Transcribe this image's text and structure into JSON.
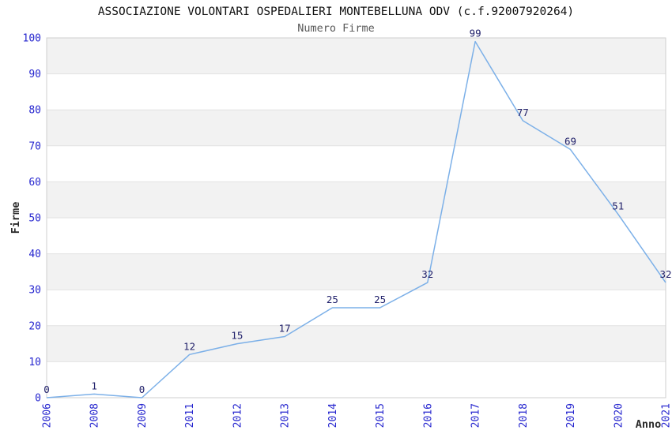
{
  "chart_data": {
    "type": "line",
    "title": "ASSOCIAZIONE VOLONTARI OSPEDALIERI MONTEBELLUNA ODV (c.f.92007920264)",
    "subtitle": "Numero Firme",
    "xlabel": "Anno",
    "ylabel": "Firme",
    "categories": [
      "2006",
      "2008",
      "2009",
      "2011",
      "2012",
      "2013",
      "2014",
      "2015",
      "2016",
      "2017",
      "2018",
      "2019",
      "2020",
      "2021"
    ],
    "values": [
      0,
      1,
      0,
      12,
      15,
      17,
      25,
      25,
      32,
      99,
      77,
      69,
      51,
      32
    ],
    "ylim": [
      0,
      100
    ],
    "yticks": [
      0,
      10,
      20,
      30,
      40,
      50,
      60,
      70,
      80,
      90,
      100
    ],
    "grid": true,
    "legend_position": "none",
    "band_pattern": "alternating-horizontal-gray-bands",
    "markers": "none",
    "data_labels_shown": true,
    "colors": {
      "line": "#7cb0e8",
      "tick_label": "#2727cf",
      "data_label": "#21216b",
      "band_fill": "#f2f2f2",
      "gridline": "#e2e2e2",
      "plot_border": "#cfcfcf",
      "title": "#111111",
      "subtitle": "#595959",
      "axis_label": "#2b2b2b",
      "background": "#ffffff"
    }
  }
}
